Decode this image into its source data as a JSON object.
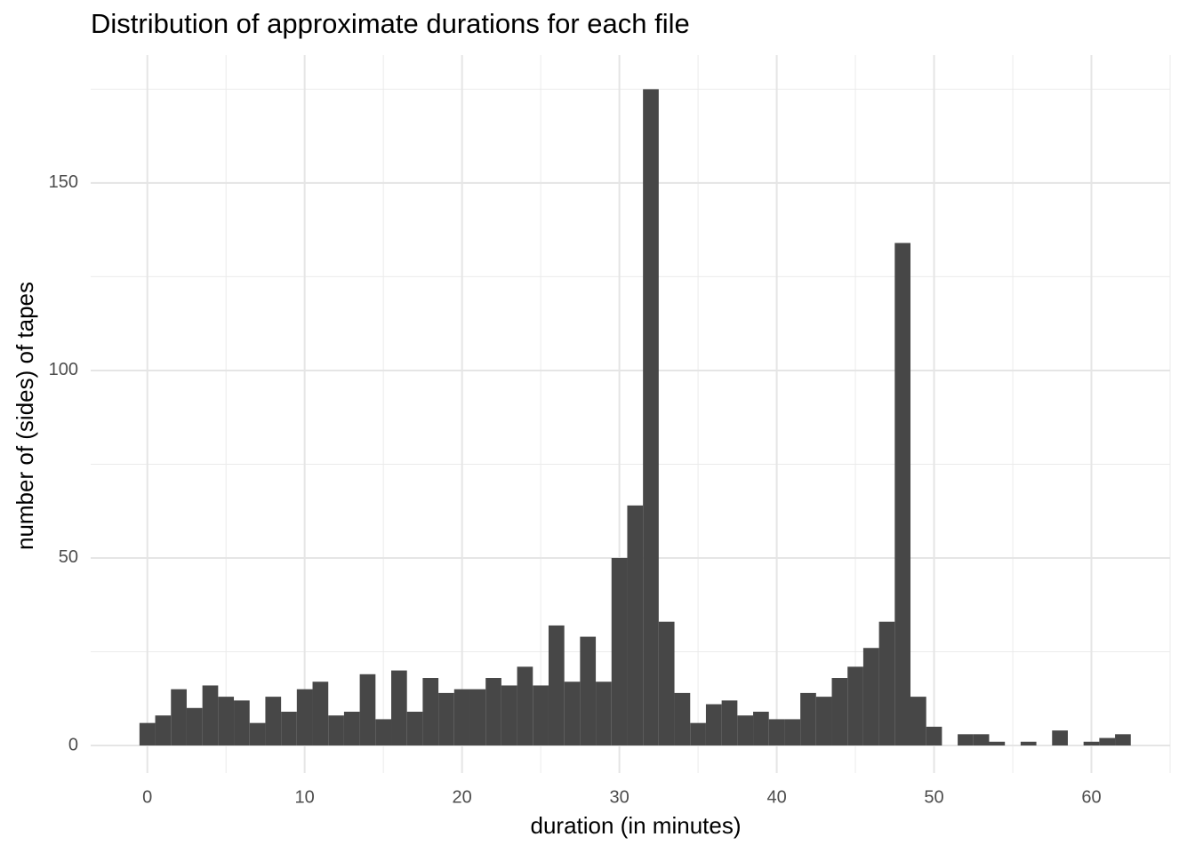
{
  "chart_data": {
    "type": "histogram",
    "title": "Distribution of approximate durations for each file",
    "x_label": "duration (in minutes)",
    "y_label": "number of (sides) of tapes",
    "bins": [
      -0.5,
      0.5,
      1.5,
      2.5,
      3.5,
      4.5,
      5.5,
      6.5,
      7.5,
      8.5,
      9.5,
      10.5,
      11.5,
      12.5,
      13.5,
      14.5,
      15.5,
      16.5,
      17.5,
      18.5,
      19.5,
      20.5,
      21.5,
      22.5,
      23.5,
      24.5,
      25.5,
      26.5,
      27.5,
      28.5,
      29.5,
      30.5,
      31.5,
      32.5,
      33.5,
      34.5,
      35.5,
      36.5,
      37.5,
      38.5,
      39.5,
      40.5,
      41.5,
      42.5,
      43.5,
      44.5,
      45.5,
      46.5,
      47.5,
      48.5,
      49.5,
      50.5,
      51.5,
      52.5,
      53.5,
      54.5,
      55.5,
      56.5,
      57.5,
      58.5,
      59.5,
      60.5,
      61.5,
      62.5
    ],
    "counts": [
      6,
      8,
      15,
      10,
      16,
      13,
      12,
      6,
      13,
      9,
      15,
      17,
      8,
      9,
      19,
      7,
      20,
      9,
      18,
      14,
      15,
      15,
      18,
      16,
      21,
      16,
      32,
      17,
      29,
      17,
      50,
      64,
      175,
      33,
      14,
      6,
      11,
      12,
      8,
      9,
      7,
      7,
      14,
      13,
      18,
      21,
      26,
      33,
      134,
      13,
      5,
      0,
      3,
      3,
      1,
      0,
      1,
      0,
      4,
      0,
      1,
      2,
      3
    ],
    "color": "#474747",
    "xlim": [
      -3.6,
      65
    ],
    "xticks": [
      0,
      10,
      20,
      30,
      40,
      50,
      60
    ],
    "ylim": [
      -7.35,
      184.1
    ],
    "yticks": [
      0,
      50,
      100,
      150
    ],
    "grid": true
  }
}
